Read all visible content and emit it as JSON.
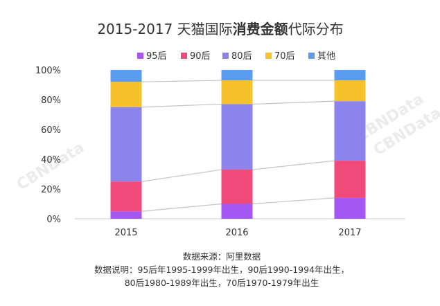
{
  "chart_data": {
    "type": "bar",
    "stacked": true,
    "percent": true,
    "title_parts": [
      {
        "text": "2015-2017 天猫国际",
        "bold": false
      },
      {
        "text": "消费金额",
        "bold": true
      },
      {
        "text": "代际分布",
        "bold": false
      }
    ],
    "categories": [
      "2015",
      "2016",
      "2017"
    ],
    "series": [
      {
        "name": "95后",
        "color": "#a457f2",
        "values": [
          5,
          10,
          14
        ]
      },
      {
        "name": "90后",
        "color": "#f04a7a",
        "values": [
          20,
          23,
          25
        ]
      },
      {
        "name": "80后",
        "color": "#8a84ec",
        "values": [
          50,
          44,
          40
        ]
      },
      {
        "name": "70后",
        "color": "#f7c12c",
        "values": [
          17,
          16,
          14
        ]
      },
      {
        "name": "其他",
        "color": "#5a9cf0",
        "values": [
          8,
          7,
          7
        ]
      }
    ],
    "y_ticks": [
      "0%",
      "20%",
      "40%",
      "60%",
      "80%",
      "100%"
    ],
    "ylim": [
      0,
      100
    ],
    "legend_position": "top",
    "grid": false,
    "connector_lines": true,
    "notes": [
      "数据来源：阿里数据",
      "数据说明：95后年1995-1999年出生，90后1990-1994年出生，",
      "80后1980-1989年出生，70后1970-1979年出生"
    ],
    "watermark": "CBNData"
  }
}
